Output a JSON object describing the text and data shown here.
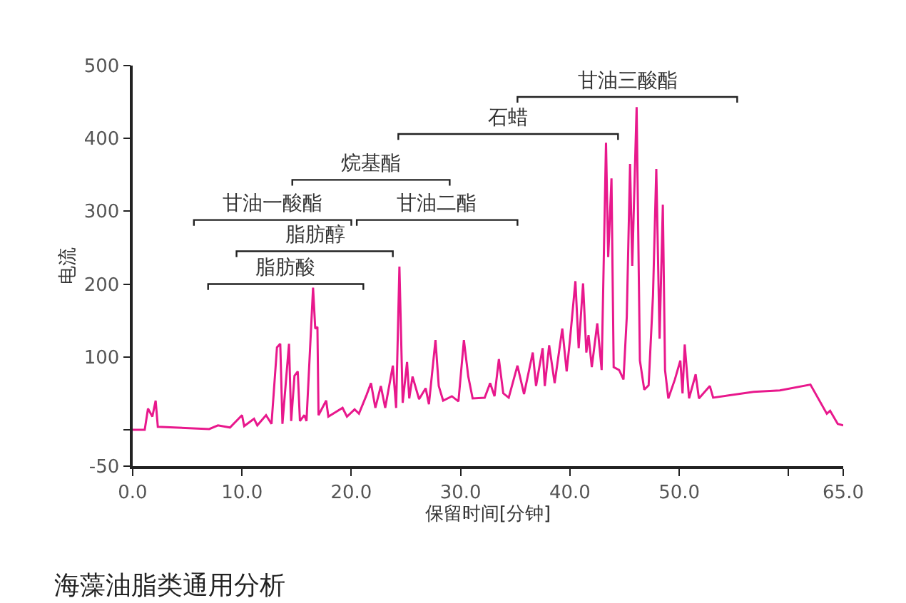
{
  "chart_data": {
    "type": "line",
    "title": "海藻油脂类通用分析",
    "xlabel": "保留时间[分钟]",
    "ylabel": "电流",
    "xlim": [
      0,
      65
    ],
    "ylim": [
      -50,
      500
    ],
    "xticks": [
      {
        "value": 0,
        "label": "0.0"
      },
      {
        "value": 10,
        "label": "10.0"
      },
      {
        "value": 20,
        "label": "20.0"
      },
      {
        "value": 30,
        "label": "30.0"
      },
      {
        "value": 40,
        "label": "40.0"
      },
      {
        "value": 50,
        "label": "50.0"
      },
      {
        "value": 60,
        "label": null
      },
      {
        "value": 65,
        "label": "65.0"
      }
    ],
    "yticks": [
      -50,
      {
        "value": 0,
        "label": null
      },
      100,
      200,
      300,
      400,
      500
    ],
    "legend": false,
    "marker": "none",
    "line_style": "solid",
    "series": [
      {
        "color": "#e8188c",
        "x": [
          0,
          1.1,
          1.4,
          1.8,
          2.1,
          2.3,
          7.0,
          7.8,
          8.9,
          10.0,
          10.2,
          11.1,
          11.4,
          12.2,
          12.7,
          13.2,
          13.5,
          13.7,
          14.3,
          14.5,
          14.8,
          15.1,
          15.3,
          15.7,
          15.9,
          16.5,
          16.7,
          16.9,
          17.0,
          17.7,
          17.9,
          19.2,
          19.6,
          20.3,
          20.7,
          21.4,
          21.8,
          22.2,
          22.7,
          23.1,
          23.8,
          24.1,
          24.4,
          24.7,
          25.1,
          25.3,
          25.6,
          26.2,
          26.8,
          27.1,
          27.7,
          28.0,
          28.4,
          29.2,
          29.8,
          30.3,
          30.7,
          31.1,
          32.2,
          32.7,
          33.1,
          33.5,
          33.9,
          34.4,
          35.2,
          35.8,
          36.6,
          36.9,
          37.5,
          37.7,
          38.1,
          38.6,
          39.3,
          39.7,
          40.0,
          40.5,
          40.8,
          41.2,
          41.5,
          41.7,
          42.0,
          42.5,
          42.9,
          43.3,
          43.5,
          43.8,
          44.0,
          44.5,
          44.9,
          45.2,
          45.5,
          45.7,
          46.1,
          46.4,
          46.8,
          47.2,
          47.6,
          47.9,
          48.2,
          48.5,
          48.7,
          49.0,
          49.6,
          50.1,
          50.3,
          50.5,
          50.9,
          51.5,
          51.8,
          52.8,
          53.1,
          56.8,
          59.2,
          62.0,
          63.5,
          63.8,
          64.5,
          65.0
        ],
        "values": [
          0,
          0,
          29,
          18,
          40,
          4,
          1,
          6,
          3,
          20,
          5,
          15,
          6,
          20,
          8,
          113,
          118,
          8,
          118,
          12,
          74,
          80,
          12,
          20,
          12,
          195,
          139,
          141,
          20,
          40,
          18,
          30,
          18,
          28,
          22,
          48,
          64,
          30,
          60,
          30,
          88,
          30,
          224,
          37,
          93,
          43,
          73,
          42,
          57,
          35,
          123,
          60,
          40,
          46,
          39,
          123,
          73,
          43,
          44,
          64,
          46,
          97,
          50,
          44,
          88,
          49,
          106,
          60,
          112,
          60,
          116,
          64,
          139,
          80,
          123,
          204,
          112,
          201,
          106,
          130,
          86,
          146,
          82,
          394,
          237,
          345,
          86,
          82,
          69,
          155,
          365,
          225,
          443,
          95,
          55,
          61,
          185,
          358,
          125,
          309,
          82,
          43,
          69,
          95,
          50,
          117,
          43,
          76,
          43,
          60,
          44,
          52,
          54,
          62,
          22,
          26,
          8,
          6
        ]
      },
      {
        "name": "脂肪酸",
        "color": "#222222",
        "x": [
          6.9,
          6.9,
          21.1,
          21.1
        ],
        "values": [
          192,
          200,
          200,
          192
        ]
      },
      {
        "name": "脂肪醇",
        "color": "#222222",
        "x": [
          9.5,
          9.5,
          23.8,
          23.8
        ],
        "values": [
          237,
          245,
          245,
          237
        ]
      },
      {
        "name": "甘油一酸酯",
        "color": "#222222",
        "x": [
          5.6,
          5.6,
          20.0,
          20.0
        ],
        "values": [
          280,
          288,
          288,
          280
        ]
      },
      {
        "name": "甘油二酯",
        "color": "#222222",
        "x": [
          20.5,
          20.5,
          35.2,
          35.2
        ],
        "values": [
          280,
          288,
          288,
          280
        ]
      },
      {
        "name": "烷基酯",
        "color": "#222222",
        "x": [
          14.6,
          14.6,
          29.0,
          29.0
        ],
        "values": [
          335,
          343,
          343,
          335
        ]
      },
      {
        "name": "石蜡",
        "color": "#222222",
        "x": [
          24.3,
          24.3,
          44.4,
          44.4
        ],
        "values": [
          398,
          406,
          406,
          398
        ]
      },
      {
        "name": "甘油三酸酯",
        "color": "#222222",
        "x": [
          35.2,
          35.2,
          55.3,
          55.3
        ],
        "values": [
          449,
          457,
          457,
          449
        ]
      }
    ]
  }
}
